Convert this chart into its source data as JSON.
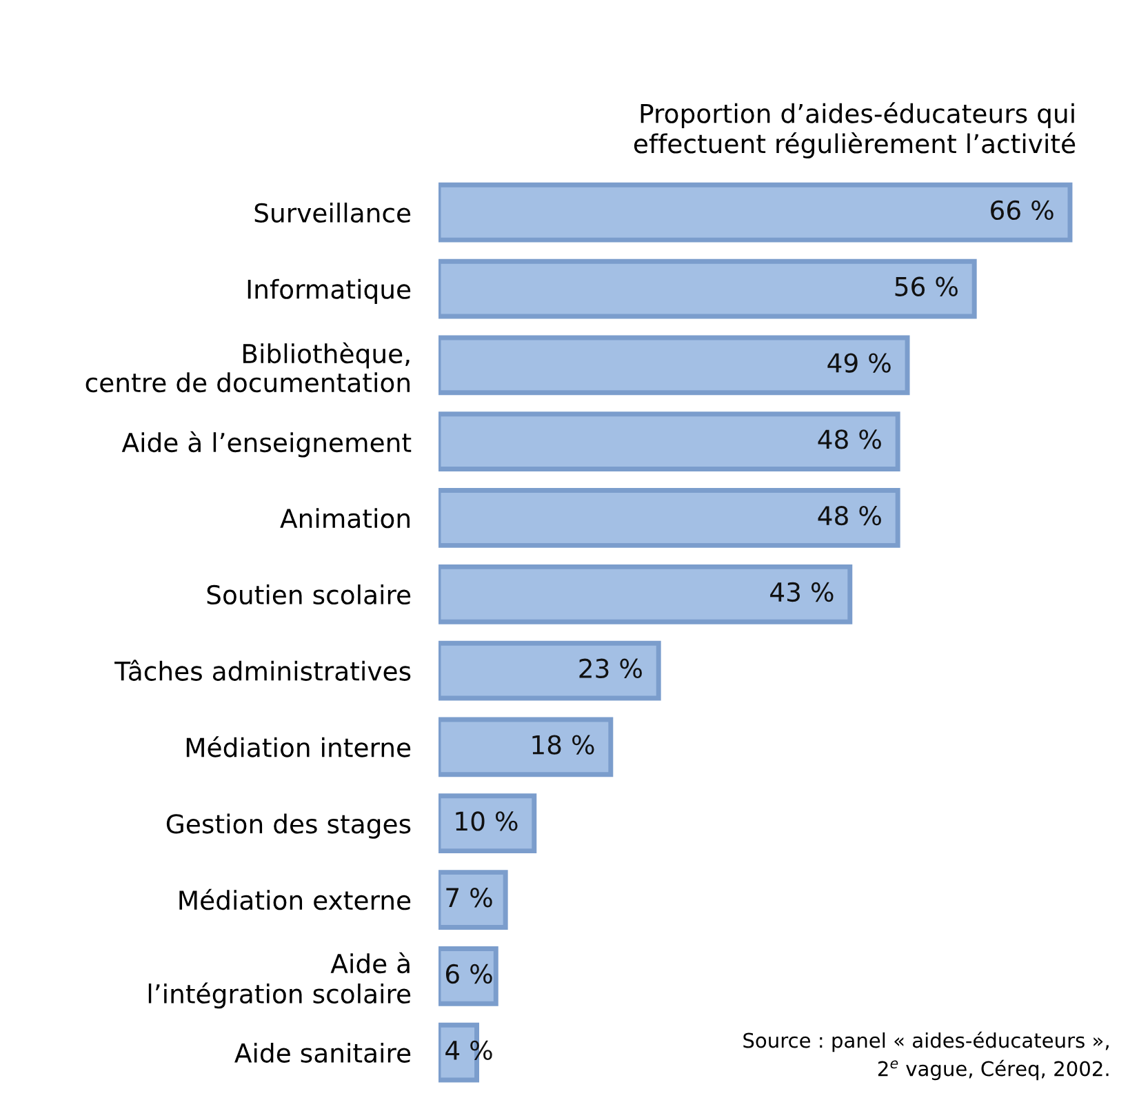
{
  "chart_data": {
    "type": "bar",
    "orientation": "horizontal",
    "title": "Proportion d’aides-éducateurs qui\neffectuent régulièrement l’activité",
    "categories": [
      "Surveillance",
      "Informatique",
      "Bibliothèque,\ncentre de documentation",
      "Aide à l’enseignement",
      "Animation",
      "Soutien scolaire",
      "Tâches administratives",
      "Médiation interne",
      "Gestion des stages",
      "Médiation externe",
      "Aide à\nl’intégration scolaire",
      "Aide sanitaire"
    ],
    "values": [
      66,
      56,
      49,
      48,
      48,
      43,
      23,
      18,
      10,
      7,
      6,
      4
    ],
    "value_labels": [
      "66 %",
      "56 %",
      "49 %",
      "48 %",
      "48 %",
      "43 %",
      "23 %",
      "18 %",
      "10 %",
      "7 %",
      "6 %",
      "4 %"
    ],
    "color": "#a3bfe4",
    "annotations": [
      "Source : panel « aides-éducateurs »,\n2$^{e}$ vague, Céreq, 2002."
    ]
  }
}
